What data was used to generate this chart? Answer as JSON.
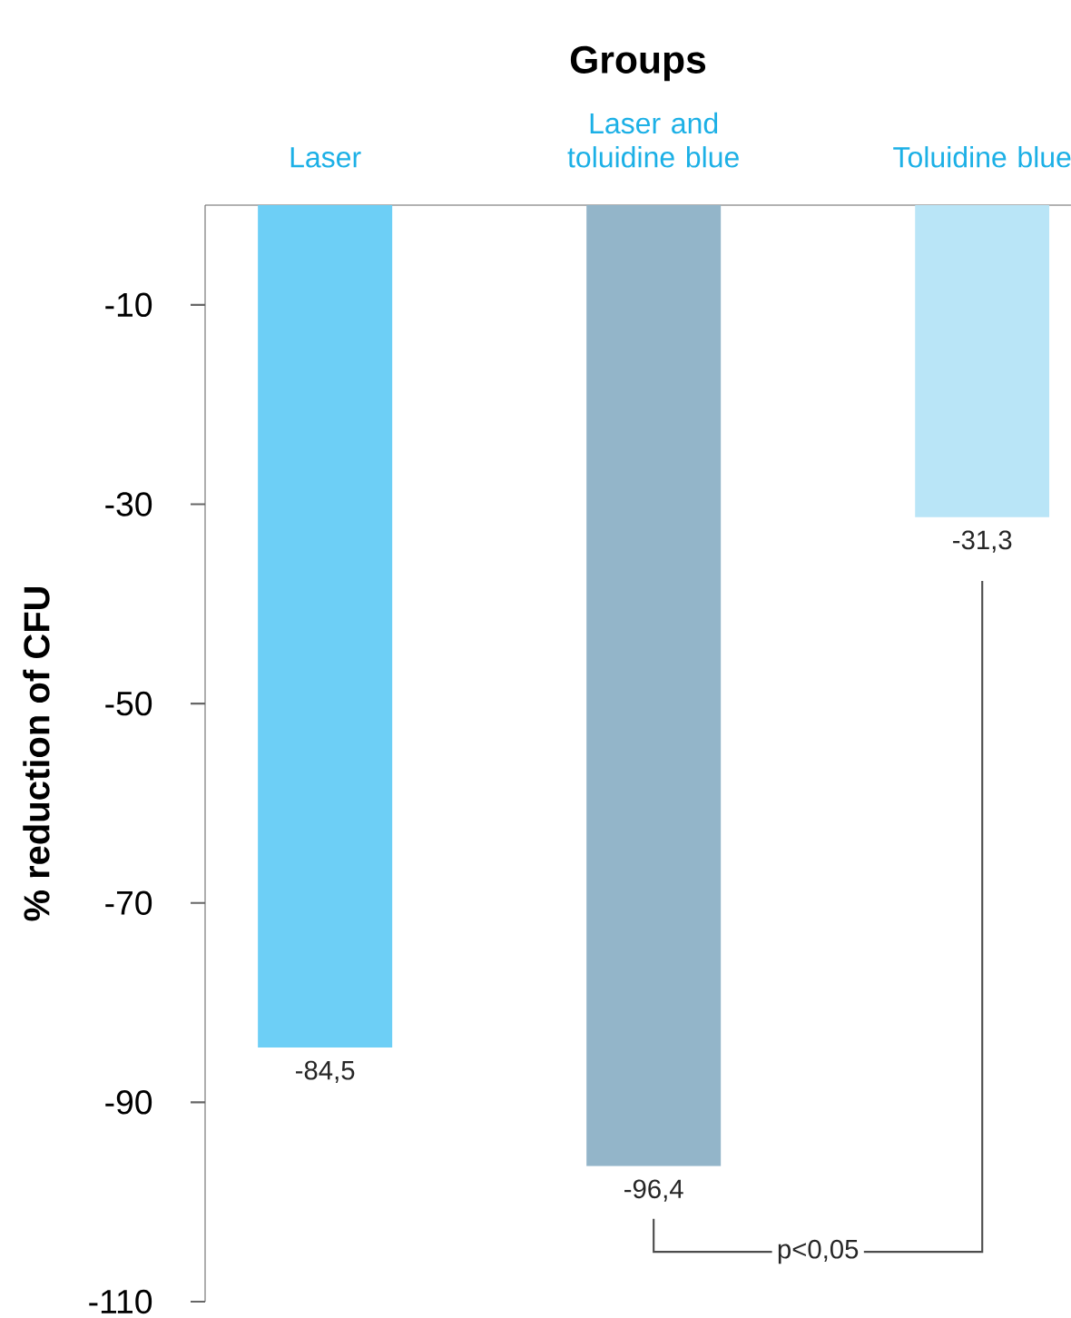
{
  "chart_data": {
    "type": "bar",
    "title": "Groups",
    "ylabel": "% reduction of CFU",
    "categories": [
      "Laser",
      "Laser and toluidine blue",
      "Toluidine blue"
    ],
    "values": [
      -84.5,
      -96.4,
      -31.3
    ],
    "colors": [
      "#6dcff6",
      "#93b5c9",
      "#b9e5f7"
    ],
    "value_labels": [
      "-84,5",
      "-96,4",
      "-31,3"
    ],
    "ylim": [
      -110,
      0
    ],
    "yticks": [
      -10,
      -30,
      -50,
      -70,
      -90,
      -110
    ],
    "annotations": [
      "p<0,05"
    ]
  }
}
